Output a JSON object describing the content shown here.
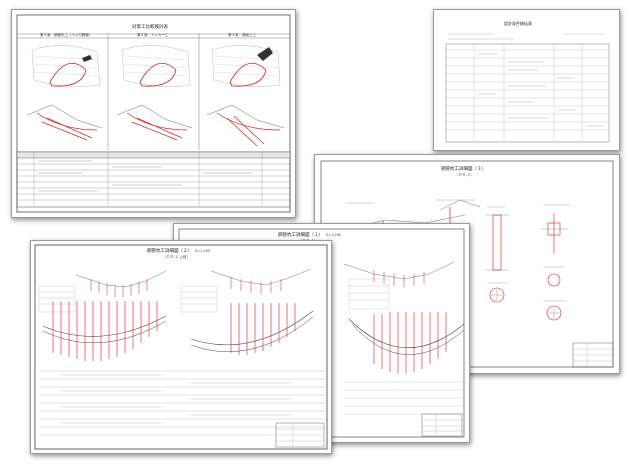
{
  "sheets": {
    "overview": {
      "title": "対策工比較検討表",
      "panels": [
        "第１案　鋼管杭工（ラス付鋼管）",
        "第２案　アンカー工",
        "第３案　補強土工"
      ]
    },
    "calc_table": {
      "title": "設計条件総括表"
    },
    "detail3": {
      "title": "鋼管杭工詳細図（３）",
      "subtitle": "（ＤＲ-３）"
    },
    "detail1": {
      "title": "鋼管杭工詳細図（１）",
      "scale": "S=1:200",
      "subtitle": "（ＤＲ-１）"
    },
    "detail2": {
      "title": "鋼管杭工詳細図（２）",
      "scale": "S=1:200",
      "subtitle": "（ＤＲ-２ 上段）"
    }
  }
}
